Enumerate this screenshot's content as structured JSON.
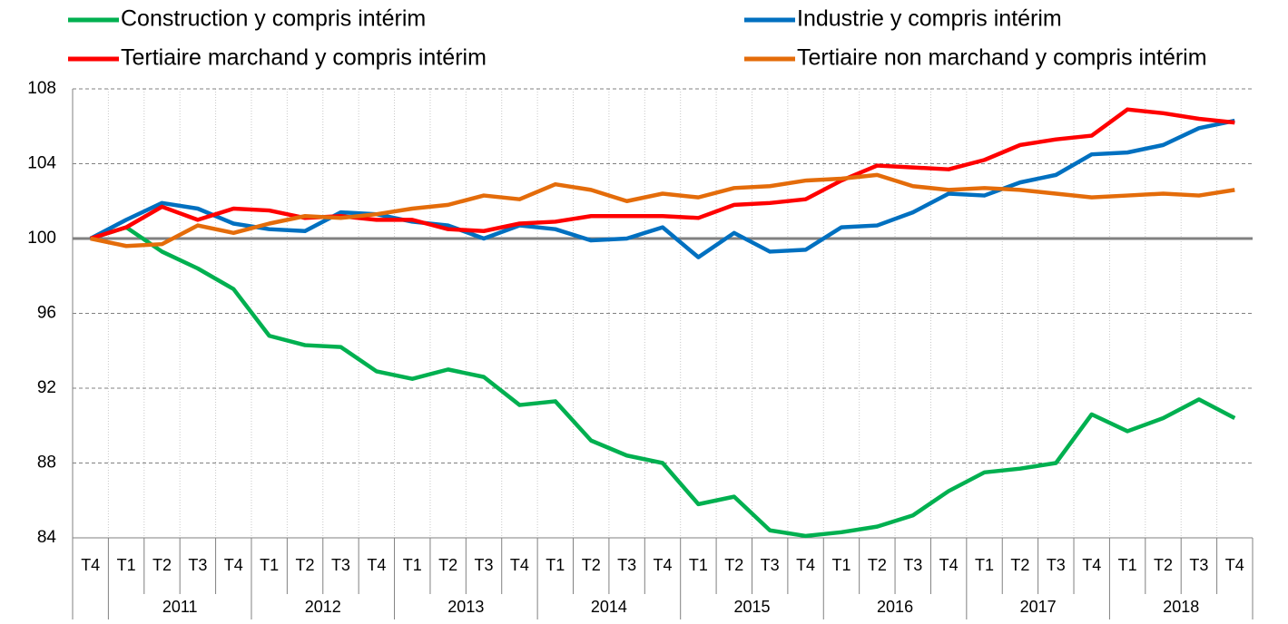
{
  "chart_data": {
    "type": "line",
    "categories": [
      "T4",
      "T1",
      "T2",
      "T3",
      "T4",
      "T1",
      "T2",
      "T3",
      "T4",
      "T1",
      "T2",
      "T3",
      "T4",
      "T1",
      "T2",
      "T3",
      "T4",
      "T1",
      "T2",
      "T3",
      "T4",
      "T1",
      "T2",
      "T3",
      "T4",
      "T1",
      "T2",
      "T3",
      "T4",
      "T1",
      "T2",
      "T3",
      "T4"
    ],
    "years": [
      "2011",
      "2012",
      "2013",
      "2014",
      "2015",
      "2016",
      "2017",
      "2018"
    ],
    "series": [
      {
        "name": "Construction y compris intérim",
        "color": "#00b050",
        "values": [
          100,
          100.6,
          99.3,
          98.4,
          97.3,
          94.8,
          94.3,
          94.2,
          92.9,
          92.5,
          93.0,
          92.6,
          91.1,
          91.3,
          89.2,
          88.4,
          88.0,
          85.8,
          86.2,
          84.4,
          84.1,
          84.3,
          84.6,
          85.2,
          86.5,
          87.5,
          87.7,
          88.0,
          90.6,
          89.7,
          90.4,
          91.4,
          90.4
        ]
      },
      {
        "name": "Industrie y compris intérim",
        "color": "#0070c0",
        "values": [
          100,
          101.0,
          101.9,
          101.6,
          100.8,
          100.5,
          100.4,
          101.4,
          101.3,
          100.9,
          100.7,
          100.0,
          100.7,
          100.5,
          99.9,
          100.0,
          100.6,
          99.0,
          100.3,
          99.3,
          99.4,
          100.6,
          100.7,
          101.4,
          102.4,
          102.3,
          103.0,
          103.4,
          104.5,
          104.6,
          105.0,
          105.9,
          106.3
        ]
      },
      {
        "name": "Tertiaire marchand y compris intérim",
        "color": "#ff0000",
        "values": [
          100,
          100.6,
          101.7,
          101.0,
          101.6,
          101.5,
          101.1,
          101.2,
          101.0,
          101.0,
          100.5,
          100.4,
          100.8,
          100.9,
          101.2,
          101.2,
          101.2,
          101.1,
          101.8,
          101.9,
          102.1,
          103.1,
          103.9,
          103.8,
          103.7,
          104.2,
          105.0,
          105.3,
          105.5,
          106.9,
          106.7,
          106.4,
          106.2
        ]
      },
      {
        "name": "Tertiaire non marchand y compris intérim",
        "color": "#e46c0a",
        "values": [
          100,
          99.6,
          99.7,
          100.7,
          100.3,
          100.8,
          101.2,
          101.1,
          101.3,
          101.6,
          101.8,
          102.3,
          102.1,
          102.9,
          102.6,
          102.0,
          102.4,
          102.2,
          102.7,
          102.8,
          103.1,
          103.2,
          103.4,
          102.8,
          102.6,
          102.7,
          102.6,
          102.4,
          102.2,
          102.3,
          102.4,
          102.3,
          102.6
        ]
      }
    ],
    "ylim": [
      84,
      108
    ],
    "yticks": [
      84,
      88,
      92,
      96,
      100,
      104,
      108
    ],
    "baseline": 100,
    "grid": true
  }
}
